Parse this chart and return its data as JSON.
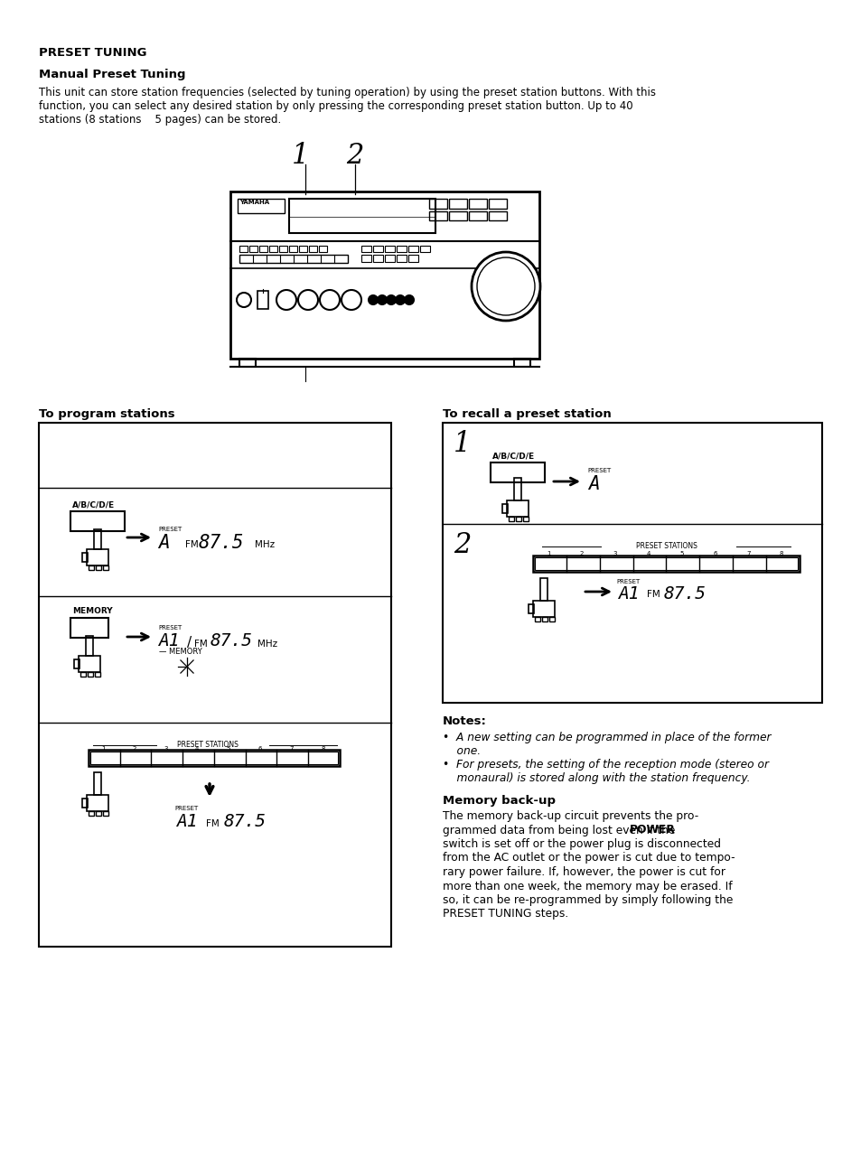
{
  "title": "PRESET TUNING",
  "subtitle": "Manual Preset Tuning",
  "body_line1": "This unit can store station frequencies (selected by tuning operation) by using the preset station buttons. With this",
  "body_line2": "function, you can select any desired station by only pressing the corresponding preset station button. Up to 40",
  "body_line3": "stations (8 stations    5 pages) can be stored.",
  "left_title": "To program stations",
  "right_title": "To recall a preset station",
  "notes_header": "Notes:",
  "note1a": "•  A new setting can be programmed in place of the former",
  "note1b": "    one.",
  "note2a": "•  For presets, the setting of the reception mode (stereo or",
  "note2b": "    monaural) is stored along with the station frequency.",
  "mem_title": "Memory back-up",
  "mem_l1": "The memory back-up circuit prevents the pro-",
  "mem_l2a": "grammed data from being lost even if the ",
  "mem_l2b": "POWER",
  "mem_l3": "switch is set off or the power plug is disconnected",
  "mem_l4": "from the AC outlet or the power is cut due to tempo-",
  "mem_l5": "rary power failure. If, however, the power is cut for",
  "mem_l6": "more than one week, the memory may be erased. If",
  "mem_l7": "so, it can be re-programmed by simply following the",
  "mem_l8": "PRESET TUNING steps.",
  "bg": "#ffffff"
}
